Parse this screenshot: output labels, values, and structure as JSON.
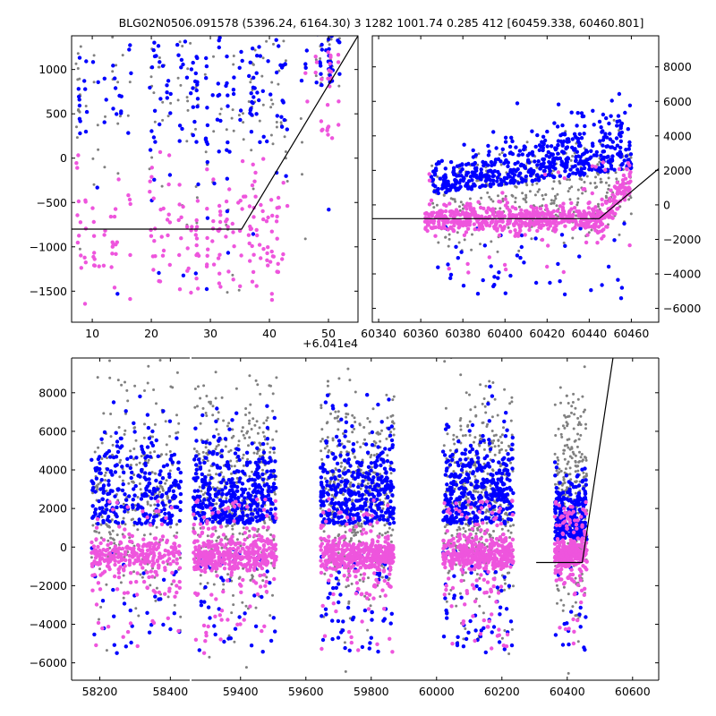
{
  "figure": {
    "title": "BLG02N0506.091578 (5396.24, 6164.30)   3 1282 1001.74 0.285 412 [60459.338, 60460.801]",
    "colors": {
      "gray": "#808080",
      "blue": "#0000ff",
      "magenta": "#ee55dd",
      "model_line": "#000000"
    }
  },
  "chart_data": [
    {
      "type": "scatter",
      "panel": "top-left",
      "xlim": [
        6.5,
        55
      ],
      "ylim": [
        -1850,
        1380
      ],
      "x_offset_label": "+6.041e4",
      "xticks": [
        10,
        20,
        30,
        40,
        50
      ],
      "xtick_labels": [
        "10",
        "20",
        "30",
        "40",
        "50"
      ],
      "yticks": [
        -1500,
        -1000,
        -500,
        0,
        500,
        1000
      ],
      "ytick_labels": [
        "−1500",
        "−1000",
        "−500",
        "0",
        "500",
        "1000"
      ],
      "yaxis_side": "left",
      "grid": false,
      "model_line": {
        "x": [
          6.5,
          35.3,
          55
        ],
        "y": [
          -800,
          -800,
          1380
        ]
      },
      "point_groups": [
        {
          "color": "magenta",
          "approx_count": 230,
          "x_range": [
            7,
            52
          ],
          "y_center": -600,
          "y_spread": 350
        },
        {
          "color": "blue",
          "approx_count": 230,
          "x_range": [
            7,
            52
          ],
          "y_center": 800,
          "y_spread": 450
        },
        {
          "color": "gray",
          "approx_count": 180,
          "x_range": [
            7,
            52
          ],
          "y_center": 700,
          "y_spread": 500
        }
      ]
    },
    {
      "type": "scatter",
      "panel": "top-right",
      "xlim": [
        60337,
        60473
      ],
      "ylim": [
        -6800,
        9800
      ],
      "xticks": [
        60340,
        60360,
        60380,
        60400,
        60420,
        60440,
        60460
      ],
      "xtick_labels": [
        "60340",
        "60360",
        "60380",
        "60400",
        "60420",
        "60440",
        "60460"
      ],
      "yticks": [
        -6000,
        -4000,
        -2000,
        0,
        2000,
        4000,
        6000,
        8000
      ],
      "ytick_labels": [
        "−6000",
        "−4000",
        "−2000",
        "0",
        "2000",
        "4000",
        "6000",
        "8000"
      ],
      "yaxis_side": "right",
      "grid": false,
      "model_line": {
        "x": [
          60337,
          60444.7,
          60473
        ],
        "y": [
          -800,
          -800,
          2100
        ]
      },
      "point_groups": [
        {
          "color": "magenta",
          "approx_count": 700,
          "x_range": [
            60362,
            60460
          ],
          "y_center": -800,
          "y_spread": 450
        },
        {
          "color": "blue",
          "approx_count": 600,
          "x_range": [
            60365,
            60460
          ],
          "y_center": 1500,
          "y_spread": 1500
        },
        {
          "color": "gray",
          "approx_count": 350,
          "x_range": [
            60365,
            60460
          ],
          "y_center": 800,
          "y_spread": 1600
        }
      ]
    },
    {
      "type": "scatter",
      "panel": "bottom",
      "segments": [
        {
          "xlim": [
            58120,
            58455
          ]
        },
        {
          "xlim": [
            59250,
            60680
          ]
        }
      ],
      "ylim": [
        -6900,
        9800
      ],
      "xticks": [
        58200,
        58400,
        59400,
        59600,
        59800,
        60000,
        60200,
        60400,
        60600
      ],
      "xtick_labels": [
        "58200",
        "58400",
        "59400",
        "59600",
        "59800",
        "60000",
        "60200",
        "60400",
        "60600"
      ],
      "yticks": [
        -6000,
        -4000,
        -2000,
        0,
        2000,
        4000,
        6000,
        8000
      ],
      "ytick_labels": [
        "−6000",
        "−4000",
        "−2000",
        "0",
        "2000",
        "4000",
        "6000",
        "8000"
      ],
      "yaxis_side": "left",
      "grid": false,
      "model_line": {
        "x": [
          60305,
          60446,
          60540
        ],
        "y": [
          -800,
          -800,
          9800
        ]
      },
      "seasons": [
        {
          "x_range": [
            58175,
            58430
          ],
          "count": 900
        },
        {
          "x_range": [
            59255,
            59510
          ],
          "count": 1300
        },
        {
          "x_range": [
            59645,
            59870
          ],
          "count": 1300
        },
        {
          "x_range": [
            60020,
            60235
          ],
          "count": 1300
        },
        {
          "x_range": [
            60362,
            60460
          ],
          "count": 900
        }
      ]
    }
  ]
}
